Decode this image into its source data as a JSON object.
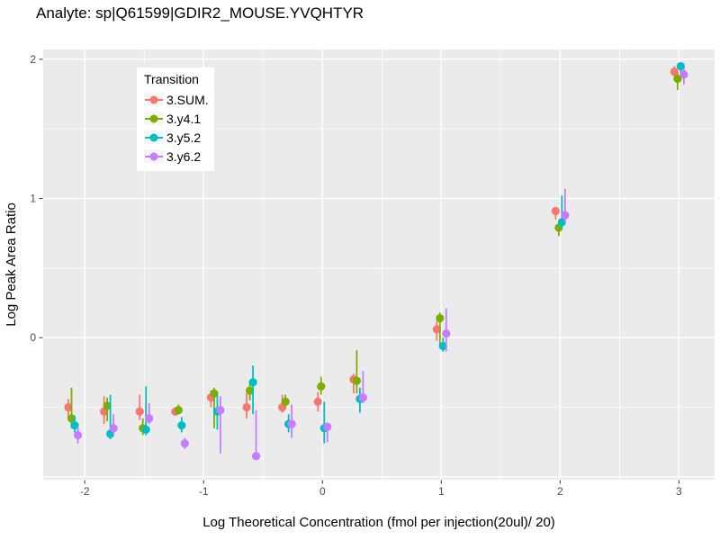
{
  "title": "Analyte: sp|Q61599|GDIR2_MOUSE.YVQHTYR",
  "axes": {
    "x": {
      "label": "Log Theoretical Concentration (fmol per injection(20ul)/ 20)",
      "tick_labels": [
        "-2",
        "-1",
        "0",
        "1",
        "2",
        "3"
      ],
      "ticks": [
        -2,
        -1,
        0,
        1,
        2,
        3
      ],
      "minor": [
        -1.5,
        -0.5,
        0.5,
        1.5,
        2.5
      ]
    },
    "y": {
      "label": "Log Peak Area Ratio",
      "tick_labels": [
        "0",
        "1",
        "2"
      ],
      "ticks": [
        0,
        1,
        2
      ],
      "major_grid": [
        -1,
        0,
        1,
        2
      ],
      "minor": [
        -0.5,
        0.5,
        1.5
      ]
    }
  },
  "legend": {
    "title": "Transition",
    "items": [
      {
        "label": "3.SUM.",
        "color": "#F8766D"
      },
      {
        "label": "3.y4.1",
        "color": "#7CAE00"
      },
      {
        "label": "3.y5.2",
        "color": "#00BFC4"
      },
      {
        "label": "3.y6.2",
        "color": "#C77CFF"
      }
    ]
  },
  "style": {
    "panel_bg": "#EBEBEB",
    "grid_color": "#FFFFFF",
    "tick_label_color": "#4D4D4D",
    "tick_mark_color": "#333333"
  },
  "chart_data": {
    "type": "scatter",
    "title": "Analyte: sp|Q61599|GDIR2_MOUSE.YVQHTYR",
    "xlabel": "Log Theoretical Concentration (fmol per injection(20ul)/ 20)",
    "ylabel": "Log Peak Area Ratio",
    "legend_title": "Transition",
    "legend_position": "inside-top-left",
    "grid": true,
    "x": [
      -2.1,
      -1.8,
      -1.5,
      -1.2,
      -0.9,
      -0.6,
      -0.3,
      0,
      0.3,
      1,
      2,
      3
    ],
    "x_domain": [
      -2.35,
      3.3
    ],
    "y_domain": [
      -1.02,
      2.07
    ],
    "series": [
      {
        "name": "3.SUM.",
        "color": "#F8766D",
        "dodge": -5,
        "y": [
          -0.5,
          -0.53,
          -0.53,
          -0.53,
          -0.43,
          -0.5,
          -0.5,
          -0.46,
          -0.3,
          0.06,
          0.91,
          1.91
        ],
        "ymin": [
          -0.58,
          -0.62,
          -0.59,
          -0.56,
          -0.5,
          -0.58,
          -0.54,
          -0.53,
          -0.4,
          -0.02,
          0.85,
          1.86
        ],
        "ymax": [
          -0.44,
          -0.42,
          -0.41,
          -0.5,
          -0.38,
          -0.4,
          -0.41,
          -0.39,
          -0.26,
          0.12,
          0.94,
          1.95
        ]
      },
      {
        "name": "3.y4.1",
        "color": "#7CAE00",
        "dodge": -1.5,
        "y": [
          -0.58,
          -0.49,
          -0.65,
          -0.52,
          -0.4,
          -0.38,
          -0.46,
          -0.35,
          -0.31,
          0.14,
          0.79,
          1.86
        ],
        "ymin": [
          -0.65,
          -0.6,
          -0.7,
          -0.55,
          -0.65,
          -0.45,
          -0.5,
          -0.41,
          -0.4,
          -0.07,
          0.73,
          1.78
        ],
        "ymax": [
          -0.36,
          -0.43,
          -0.58,
          -0.48,
          -0.36,
          -0.33,
          -0.41,
          -0.28,
          -0.09,
          0.18,
          0.83,
          1.9
        ]
      },
      {
        "name": "3.y5.2",
        "color": "#00BFC4",
        "dodge": 2,
        "y": [
          -0.63,
          -0.69,
          -0.66,
          -0.63,
          -0.53,
          -0.32,
          -0.62,
          -0.65,
          -0.44,
          -0.06,
          0.83,
          1.95
        ],
        "ymin": [
          -0.68,
          -0.73,
          -0.7,
          -0.68,
          -0.66,
          -0.55,
          -0.68,
          -0.76,
          -0.54,
          -0.1,
          0.78,
          1.9
        ],
        "ymax": [
          -0.56,
          -0.41,
          -0.35,
          -0.57,
          -0.41,
          -0.2,
          -0.55,
          -0.46,
          -0.36,
          0.0,
          1.02,
          1.98
        ]
      },
      {
        "name": "3.y6.2",
        "color": "#C77CFF",
        "dodge": 5.5,
        "y": [
          -0.7,
          -0.65,
          -0.58,
          -0.76,
          -0.52,
          -0.85,
          -0.62,
          -0.64,
          -0.43,
          0.03,
          0.88,
          1.89
        ],
        "ymin": [
          -0.76,
          -0.7,
          -0.62,
          -0.8,
          -0.83,
          -0.88,
          -0.72,
          -0.75,
          -0.47,
          -0.1,
          0.82,
          1.82
        ],
        "ymax": [
          -0.64,
          -0.55,
          -0.47,
          -0.72,
          -0.42,
          -0.52,
          -0.48,
          -0.61,
          -0.24,
          0.21,
          1.07,
          1.93
        ]
      }
    ]
  }
}
